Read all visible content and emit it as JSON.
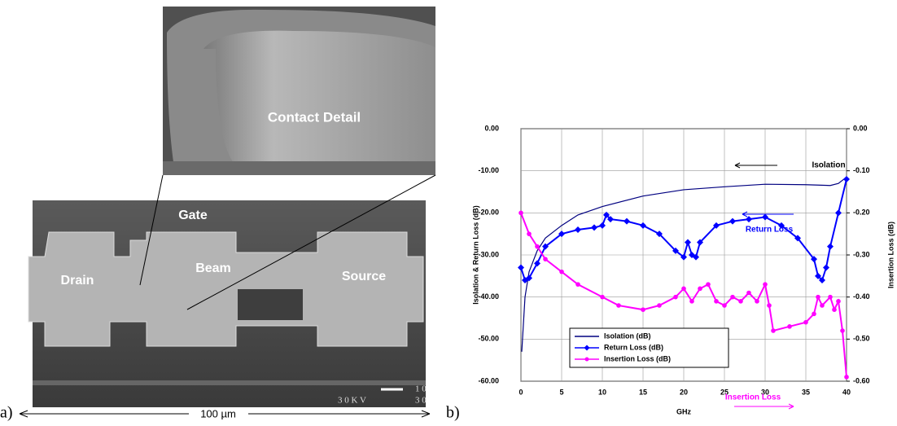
{
  "panel_a": {
    "label": "a)",
    "inset_label": "Contact Detail",
    "labels": [
      "Gate",
      "Drain",
      "Beam",
      "Source"
    ],
    "scale_bar": "1 0",
    "voltage": "3 0 K V",
    "scale_number": "3 0",
    "width": "100 µm"
  },
  "panel_b": {
    "label": "b)"
  },
  "chart_data": {
    "type": "line",
    "x_label": "GHz",
    "y_label": "Isolation & Return Loss (dB)",
    "y2_label": "Insertion Loss (dB)",
    "xlim": [
      0,
      40
    ],
    "xticks": [
      0,
      5,
      10,
      15,
      20,
      25,
      30,
      35,
      40
    ],
    "ylim": [
      -60,
      0
    ],
    "yticks": [
      {
        "value": 0,
        "label": "0.00"
      },
      {
        "value": -10,
        "label": "-10.00"
      },
      {
        "value": -20,
        "label": "-20.00"
      },
      {
        "value": -30,
        "label": "-30.00"
      },
      {
        "value": -40,
        "label": "-40.00"
      },
      {
        "value": -50,
        "label": "-50.00"
      },
      {
        "value": -60,
        "label": "-60.00"
      }
    ],
    "y2lim": [
      -0.6,
      0
    ],
    "y2ticks": [
      {
        "value": 0,
        "label": "0.00"
      },
      {
        "value": -0.1,
        "label": "-0.10"
      },
      {
        "value": -0.2,
        "label": "-0.20"
      },
      {
        "value": -0.3,
        "label": "-0.30"
      },
      {
        "value": -0.4,
        "label": "-0.40"
      },
      {
        "value": -0.5,
        "label": "-0.50"
      },
      {
        "value": -0.6,
        "label": "-0.60"
      }
    ],
    "grid": true,
    "annotations": [
      "Isolation",
      "Return Loss",
      "Insertion Loss"
    ],
    "series": [
      {
        "name": "Isolation (dB)",
        "color": "#000080",
        "marker": "none",
        "x": [
          0.1,
          0.5,
          1,
          2,
          3,
          5,
          7,
          10,
          15,
          20,
          25,
          30,
          35,
          38,
          39,
          40
        ],
        "values": [
          -53,
          -40,
          -34,
          -29,
          -26,
          -23,
          -20.5,
          -18.5,
          -16,
          -14.5,
          -13.8,
          -13.2,
          -13.3,
          -13.5,
          -13,
          -11.5
        ]
      },
      {
        "name": "Return Loss (dB)",
        "color": "#0000ff",
        "marker": "diamond",
        "x": [
          0,
          0.5,
          1,
          2,
          3,
          5,
          7,
          9,
          10,
          10.5,
          11,
          13,
          15,
          17,
          19,
          20,
          20.5,
          21,
          21.5,
          22,
          24,
          26,
          28,
          30,
          32,
          34,
          36,
          36.5,
          37,
          37.5,
          38,
          39,
          40
        ],
        "values": [
          -33,
          -36,
          -35.5,
          -32,
          -28,
          -25,
          -24,
          -23.5,
          -23,
          -20.5,
          -21.5,
          -22,
          -23,
          -25,
          -29,
          -30.5,
          -27,
          -30,
          -30.5,
          -27,
          -23,
          -22,
          -21.5,
          -21,
          -23,
          -26,
          -31,
          -35,
          -36,
          -33,
          -28,
          -20,
          -12
        ]
      },
      {
        "name": "Insertion Loss (dB)",
        "color": "#ff00ff",
        "marker": "circle",
        "axis": "y2",
        "x": [
          0,
          1,
          2,
          3,
          5,
          7,
          10,
          12,
          15,
          17,
          19,
          20,
          21,
          22,
          23,
          24,
          25,
          26,
          27,
          28,
          29,
          30,
          30.5,
          31,
          33,
          35,
          36,
          36.5,
          37,
          38,
          38.5,
          39,
          39.5,
          40
        ],
        "values": [
          -0.2,
          -0.25,
          -0.28,
          -0.31,
          -0.34,
          -0.37,
          -0.4,
          -0.42,
          -0.43,
          -0.42,
          -0.4,
          -0.38,
          -0.41,
          -0.38,
          -0.37,
          -0.41,
          -0.42,
          -0.4,
          -0.41,
          -0.39,
          -0.41,
          -0.37,
          -0.42,
          -0.48,
          -0.47,
          -0.46,
          -0.44,
          -0.4,
          -0.42,
          -0.4,
          -0.43,
          -0.41,
          -0.48,
          -0.59
        ]
      }
    ]
  }
}
